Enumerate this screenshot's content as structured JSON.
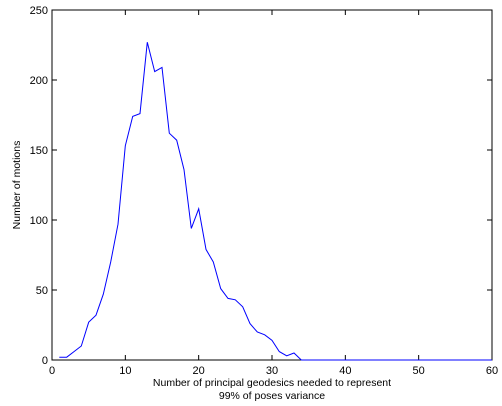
{
  "chart_data": {
    "type": "line",
    "title": "",
    "xlabel": [
      "Number of principal geodesics needed to represent",
      "99% of poses variance"
    ],
    "ylabel": "Number of motions",
    "xlim": [
      0,
      60
    ],
    "ylim": [
      0,
      250
    ],
    "xticks": [
      0,
      10,
      20,
      30,
      40,
      50,
      60
    ],
    "yticks": [
      0,
      50,
      100,
      150,
      200,
      250
    ],
    "grid": false,
    "legend": "none",
    "line_color": "#0000ff",
    "series": [
      {
        "x": [
          1,
          2,
          3,
          4,
          5,
          6,
          7,
          8,
          9,
          10,
          11,
          12,
          13,
          14,
          15,
          16,
          17,
          18,
          19,
          20,
          21,
          22,
          23,
          24,
          25,
          26,
          27,
          28,
          29,
          30,
          31,
          32,
          33,
          34,
          35,
          36,
          37,
          38,
          39,
          40,
          41,
          42,
          43,
          44,
          45,
          46,
          47,
          48,
          49,
          50,
          51,
          52,
          53,
          54,
          55,
          56,
          57,
          58,
          59,
          60
        ],
        "values": [
          2,
          2,
          6,
          10,
          27,
          32,
          47,
          70,
          97,
          153,
          174,
          176,
          227,
          206,
          209,
          162,
          157,
          136,
          94,
          108,
          79,
          70,
          51,
          44,
          43,
          38,
          26,
          20,
          18,
          14,
          6,
          3,
          5,
          0,
          0,
          0,
          0,
          0,
          0,
          0,
          0,
          0,
          0,
          0,
          0,
          0,
          0,
          0,
          0,
          0,
          0,
          0,
          0,
          0,
          0,
          0,
          0,
          0,
          0,
          0
        ]
      }
    ]
  }
}
